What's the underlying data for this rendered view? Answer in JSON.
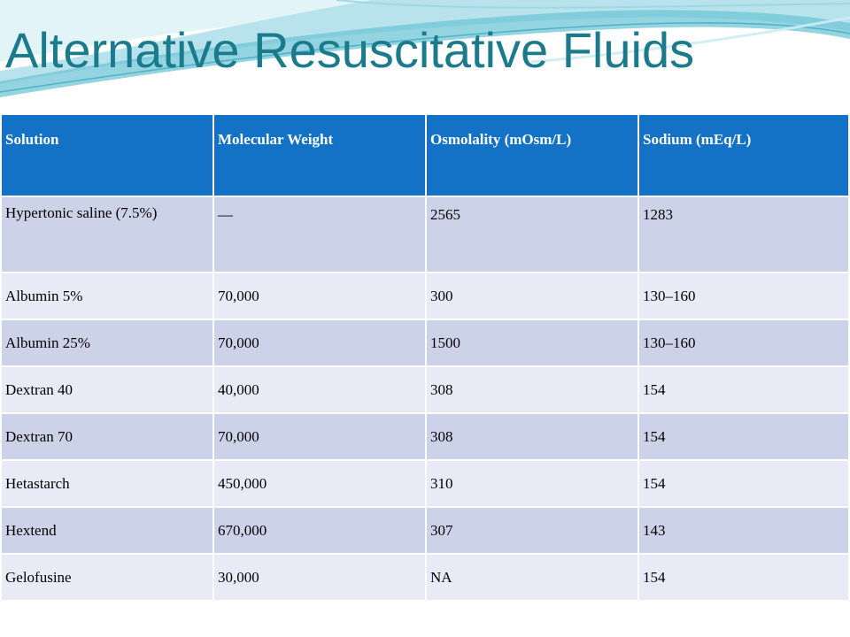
{
  "slide": {
    "title": "Alternative Resuscitative Fluids"
  },
  "table": {
    "headers": [
      "Solution",
      "Molecular Weight",
      "Osmolality (mOsm/L)",
      "Sodium (mEq/L)"
    ],
    "rows": [
      [
        "Hypertonic saline (7.5%)",
        "—",
        "2565",
        "1283"
      ],
      [
        "Albumin 5%",
        "70,000",
        "300",
        "130–160"
      ],
      [
        "Albumin 25%",
        "70,000",
        "1500",
        "130–160"
      ],
      [
        "Dextran 40",
        "40,000",
        "308",
        "154"
      ],
      [
        "Dextran 70",
        "70,000",
        "308",
        "154"
      ],
      [
        "Hetastarch",
        "450,000",
        "310",
        "154"
      ],
      [
        "Hextend",
        "670,000",
        "307",
        "143"
      ],
      [
        "Gelofusine",
        "30,000",
        "NA",
        "154"
      ]
    ]
  },
  "colors": {
    "title": "#1B7A8C",
    "header_bg": "#1371C6",
    "row_dark": "#CCD3E8",
    "row_light": "#E8EBF5",
    "wave_teal": "#6FC5D6"
  }
}
